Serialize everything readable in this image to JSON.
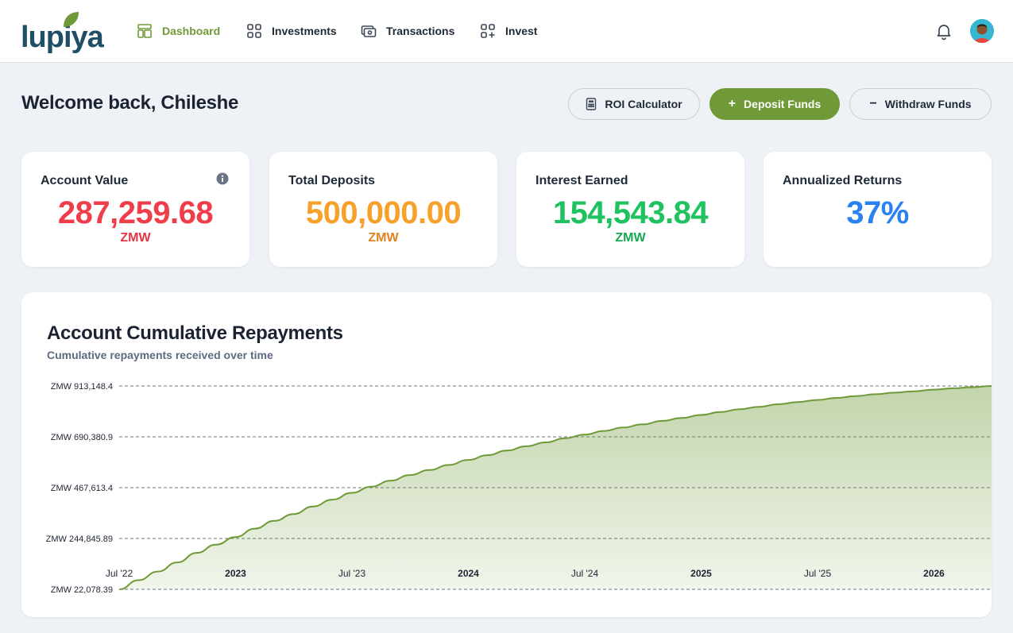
{
  "brand": {
    "name": "lupiya",
    "primary": "#6f9a37",
    "navy": "#1f4f66"
  },
  "nav": [
    {
      "label": "Dashboard",
      "icon": "dashboard-icon",
      "active": true
    },
    {
      "label": "Investments",
      "icon": "grid-icon",
      "active": false
    },
    {
      "label": "Transactions",
      "icon": "cash-icon",
      "active": false
    },
    {
      "label": "Invest",
      "icon": "grid-plus-icon",
      "active": false
    }
  ],
  "header": {
    "notification_icon": "bell-icon",
    "avatar_icon": "user-avatar"
  },
  "welcome": "Welcome back, Chileshe",
  "actions": {
    "roi": "ROI Calculator",
    "deposit": "Deposit Funds",
    "withdraw": "Withdraw Funds"
  },
  "cards": [
    {
      "title": "Account Value",
      "value": "287,259.68",
      "unit": "ZMW",
      "color": "#ef3e4a",
      "unit_color": "#e23442"
    },
    {
      "title": "Total Deposits",
      "value": "500,000.00",
      "unit": "ZMW",
      "color": "#f7a12b",
      "unit_color": "#e2831f"
    },
    {
      "title": "Interest Earned",
      "value": "154,543.84",
      "unit": "ZMW",
      "color": "#1ec25e",
      "unit_color": "#17a852"
    },
    {
      "title": "Annualized Returns",
      "value": "37%",
      "unit": "",
      "color": "#2a82f0",
      "unit_color": "#2a82f0"
    }
  ],
  "chart_data": {
    "type": "area",
    "title": "Account Cumulative Repayments",
    "subtitle": "Cumulative repayments received over time",
    "y_ticks": [
      "ZMW 22,078.39",
      "ZMW 244,845.89",
      "ZMW 467,613.4",
      "ZMW 690,380.9",
      "ZMW 913,148.4"
    ],
    "y_tick_values": [
      22078.39,
      244845.89,
      467613.4,
      690380.9,
      913148.4
    ],
    "ylim": [
      22078.39,
      913148.4
    ],
    "x_ticks": [
      {
        "label": "Jul '22",
        "bold": false
      },
      {
        "label": "2023",
        "bold": true
      },
      {
        "label": "Jul '23",
        "bold": false
      },
      {
        "label": "2024",
        "bold": true
      },
      {
        "label": "Jul '24",
        "bold": false
      },
      {
        "label": "2025",
        "bold": true
      },
      {
        "label": "Jul '25",
        "bold": false
      },
      {
        "label": "2026",
        "bold": true
      }
    ],
    "x": [
      "2022-07",
      "2022-08",
      "2022-09",
      "2022-10",
      "2022-11",
      "2022-12",
      "2023-01",
      "2023-02",
      "2023-03",
      "2023-04",
      "2023-05",
      "2023-06",
      "2023-07",
      "2023-08",
      "2023-09",
      "2023-10",
      "2023-11",
      "2023-12",
      "2024-01",
      "2024-02",
      "2024-03",
      "2024-04",
      "2024-05",
      "2024-06",
      "2024-07",
      "2024-08",
      "2024-09",
      "2024-10",
      "2024-11",
      "2024-12",
      "2025-01",
      "2025-02",
      "2025-03",
      "2025-04",
      "2025-05",
      "2025-06",
      "2025-07",
      "2025-08",
      "2025-09",
      "2025-10",
      "2025-11",
      "2025-12",
      "2026-01",
      "2026-02",
      "2026-03",
      "2026-04"
    ],
    "values": [
      22078,
      62000,
      100000,
      140000,
      182000,
      218000,
      251000,
      288000,
      322000,
      352000,
      385000,
      415000,
      445000,
      472000,
      498000,
      523000,
      545000,
      567000,
      589000,
      610000,
      630000,
      649000,
      666000,
      684000,
      700000,
      716000,
      731000,
      745000,
      760000,
      773000,
      786000,
      799000,
      811000,
      822000,
      833000,
      843000,
      852000,
      861000,
      869000,
      877000,
      884000,
      890000,
      897000,
      903000,
      908000,
      913148
    ],
    "series_color": "#6f9a37",
    "grid": true,
    "legend": "none"
  }
}
